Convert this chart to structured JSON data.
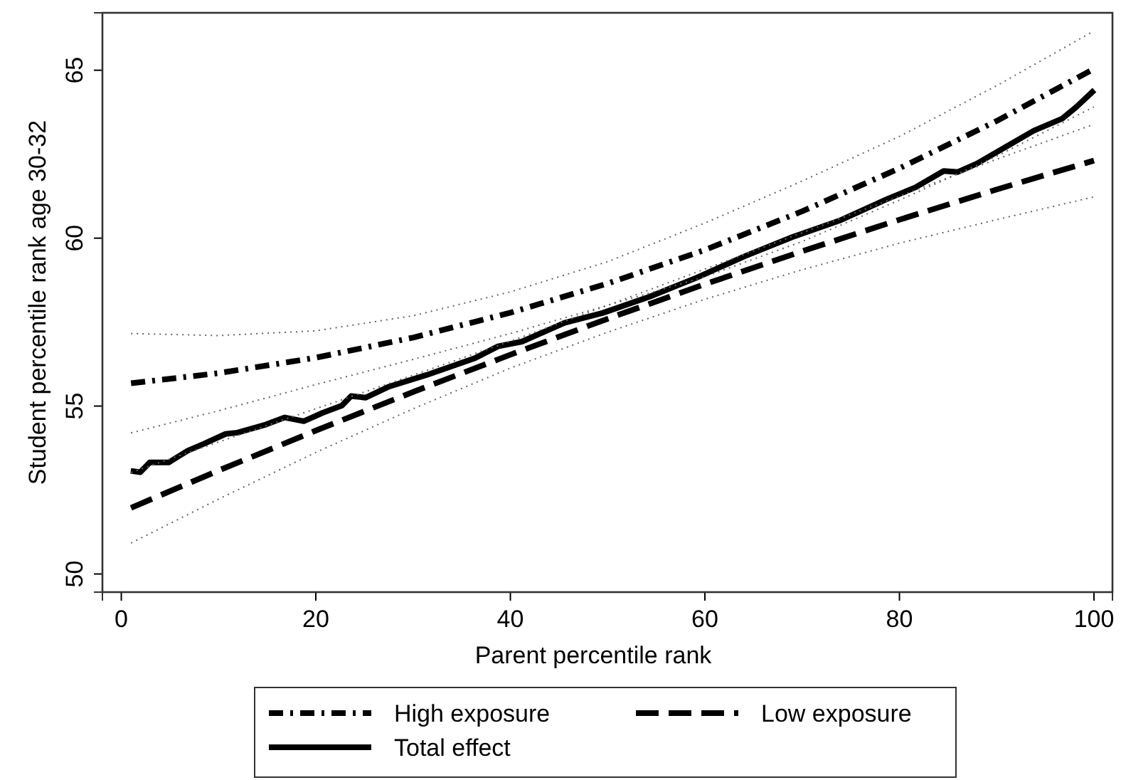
{
  "chart_data": {
    "type": "line",
    "xlabel": "Parent percentile rank",
    "ylabel": "Student percentile rank age 30-32",
    "xlim": [
      -1.94,
      101.9
    ],
    "ylim": [
      49.46,
      66.71
    ],
    "xticks": [
      0,
      20,
      40,
      60,
      80,
      100
    ],
    "yticks": [
      50,
      55,
      60,
      65
    ],
    "grid": false,
    "legend": "bottom",
    "marker": "none",
    "series": [
      {
        "name": "High exposure",
        "color": "#000000",
        "line_style": "dashdot",
        "x": [
          1,
          10,
          20,
          30,
          40,
          50,
          60,
          70,
          80,
          90,
          100
        ],
        "values": [
          55.68,
          55.98,
          56.44,
          57.04,
          57.78,
          58.65,
          59.65,
          60.8,
          62.08,
          63.49,
          65.04
        ]
      },
      {
        "name": "Low exposure",
        "color": "#000000",
        "line_style": "dashed",
        "x": [
          1,
          10,
          20,
          30,
          40,
          50,
          60,
          70,
          80,
          90,
          100
        ],
        "values": [
          51.97,
          53.08,
          54.27,
          55.42,
          56.53,
          57.6,
          58.63,
          59.61,
          60.55,
          61.45,
          62.31
        ]
      },
      {
        "name": "Total effect",
        "color": "#000000",
        "line_style": "solid",
        "x": [
          0.97,
          1.95,
          2.92,
          4.87,
          6.82,
          8.53,
          10.72,
          11.94,
          14.86,
          16.81,
          18.76,
          20.71,
          22.66,
          23.63,
          25.1,
          27.53,
          31.43,
          36.3,
          38.74,
          41.19,
          45.57,
          49.46,
          54.34,
          59.21,
          64.08,
          68.96,
          73.83,
          78.7,
          81.63,
          84.55,
          86.01,
          87.96,
          90.89,
          93.81,
          96.74,
          98.2,
          100.04
        ],
        "values": [
          53.07,
          53.03,
          53.32,
          53.32,
          53.67,
          53.88,
          54.17,
          54.21,
          54.45,
          54.66,
          54.55,
          54.8,
          55.01,
          55.3,
          55.25,
          55.58,
          55.93,
          56.42,
          56.78,
          56.92,
          57.48,
          57.77,
          58.26,
          58.83,
          59.46,
          60.03,
          60.52,
          61.16,
          61.51,
          62.0,
          61.97,
          62.22,
          62.71,
          63.2,
          63.56,
          63.91,
          64.41
        ]
      },
      {
        "color": "#666666",
        "line_style": "dotted",
        "x": [
          1,
          10,
          20,
          30,
          40,
          50,
          60,
          70,
          80,
          90,
          100
        ],
        "values": [
          57.16,
          57.1,
          57.24,
          57.69,
          58.4,
          59.3,
          60.45,
          61.7,
          63.03,
          64.54,
          66.17
        ]
      },
      {
        "color": "#666666",
        "line_style": "dotted",
        "x": [
          1,
          10,
          20,
          30,
          40,
          50,
          60,
          70,
          80,
          90,
          100
        ],
        "values": [
          54.2,
          54.86,
          55.64,
          56.39,
          57.16,
          58.0,
          58.85,
          59.9,
          61.13,
          62.44,
          63.91
        ]
      },
      {
        "color": "#666666",
        "line_style": "dotted",
        "x": [
          1,
          10,
          20,
          30,
          40,
          50,
          60,
          70,
          80,
          90,
          100
        ],
        "values": [
          53.02,
          53.93,
          54.92,
          55.92,
          56.93,
          58.0,
          59.08,
          60.16,
          61.25,
          62.35,
          63.39
        ]
      },
      {
        "color": "#666666",
        "line_style": "dotted",
        "x": [
          1,
          10,
          20,
          30,
          40,
          50,
          60,
          70,
          80,
          90,
          100
        ],
        "values": [
          50.92,
          52.23,
          53.62,
          54.92,
          56.13,
          57.2,
          58.18,
          59.06,
          59.85,
          60.55,
          61.23
        ]
      }
    ]
  }
}
